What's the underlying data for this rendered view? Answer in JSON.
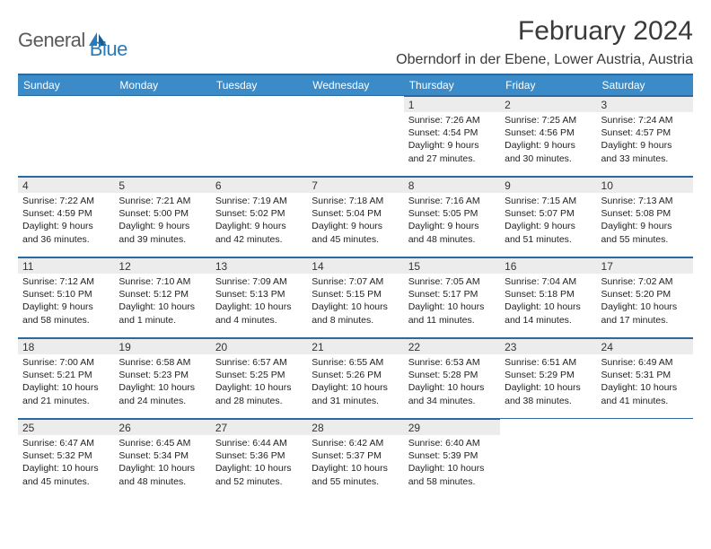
{
  "logo": {
    "general": "General",
    "blue": "Blue"
  },
  "title": "February 2024",
  "location": "Oberndorf in der Ebene, Lower Austria, Austria",
  "header_bg": "#3b8bc8",
  "header_border": "#2a6aa0",
  "daynum_bg": "#ececec",
  "days": [
    "Sunday",
    "Monday",
    "Tuesday",
    "Wednesday",
    "Thursday",
    "Friday",
    "Saturday"
  ],
  "weeks": [
    [
      null,
      null,
      null,
      null,
      {
        "n": "1",
        "sr": "7:26 AM",
        "ss": "4:54 PM",
        "dl": "9 hours and 27 minutes."
      },
      {
        "n": "2",
        "sr": "7:25 AM",
        "ss": "4:56 PM",
        "dl": "9 hours and 30 minutes."
      },
      {
        "n": "3",
        "sr": "7:24 AM",
        "ss": "4:57 PM",
        "dl": "9 hours and 33 minutes."
      }
    ],
    [
      {
        "n": "4",
        "sr": "7:22 AM",
        "ss": "4:59 PM",
        "dl": "9 hours and 36 minutes."
      },
      {
        "n": "5",
        "sr": "7:21 AM",
        "ss": "5:00 PM",
        "dl": "9 hours and 39 minutes."
      },
      {
        "n": "6",
        "sr": "7:19 AM",
        "ss": "5:02 PM",
        "dl": "9 hours and 42 minutes."
      },
      {
        "n": "7",
        "sr": "7:18 AM",
        "ss": "5:04 PM",
        "dl": "9 hours and 45 minutes."
      },
      {
        "n": "8",
        "sr": "7:16 AM",
        "ss": "5:05 PM",
        "dl": "9 hours and 48 minutes."
      },
      {
        "n": "9",
        "sr": "7:15 AM",
        "ss": "5:07 PM",
        "dl": "9 hours and 51 minutes."
      },
      {
        "n": "10",
        "sr": "7:13 AM",
        "ss": "5:08 PM",
        "dl": "9 hours and 55 minutes."
      }
    ],
    [
      {
        "n": "11",
        "sr": "7:12 AM",
        "ss": "5:10 PM",
        "dl": "9 hours and 58 minutes."
      },
      {
        "n": "12",
        "sr": "7:10 AM",
        "ss": "5:12 PM",
        "dl": "10 hours and 1 minute."
      },
      {
        "n": "13",
        "sr": "7:09 AM",
        "ss": "5:13 PM",
        "dl": "10 hours and 4 minutes."
      },
      {
        "n": "14",
        "sr": "7:07 AM",
        "ss": "5:15 PM",
        "dl": "10 hours and 8 minutes."
      },
      {
        "n": "15",
        "sr": "7:05 AM",
        "ss": "5:17 PM",
        "dl": "10 hours and 11 minutes."
      },
      {
        "n": "16",
        "sr": "7:04 AM",
        "ss": "5:18 PM",
        "dl": "10 hours and 14 minutes."
      },
      {
        "n": "17",
        "sr": "7:02 AM",
        "ss": "5:20 PM",
        "dl": "10 hours and 17 minutes."
      }
    ],
    [
      {
        "n": "18",
        "sr": "7:00 AM",
        "ss": "5:21 PM",
        "dl": "10 hours and 21 minutes."
      },
      {
        "n": "19",
        "sr": "6:58 AM",
        "ss": "5:23 PM",
        "dl": "10 hours and 24 minutes."
      },
      {
        "n": "20",
        "sr": "6:57 AM",
        "ss": "5:25 PM",
        "dl": "10 hours and 28 minutes."
      },
      {
        "n": "21",
        "sr": "6:55 AM",
        "ss": "5:26 PM",
        "dl": "10 hours and 31 minutes."
      },
      {
        "n": "22",
        "sr": "6:53 AM",
        "ss": "5:28 PM",
        "dl": "10 hours and 34 minutes."
      },
      {
        "n": "23",
        "sr": "6:51 AM",
        "ss": "5:29 PM",
        "dl": "10 hours and 38 minutes."
      },
      {
        "n": "24",
        "sr": "6:49 AM",
        "ss": "5:31 PM",
        "dl": "10 hours and 41 minutes."
      }
    ],
    [
      {
        "n": "25",
        "sr": "6:47 AM",
        "ss": "5:32 PM",
        "dl": "10 hours and 45 minutes."
      },
      {
        "n": "26",
        "sr": "6:45 AM",
        "ss": "5:34 PM",
        "dl": "10 hours and 48 minutes."
      },
      {
        "n": "27",
        "sr": "6:44 AM",
        "ss": "5:36 PM",
        "dl": "10 hours and 52 minutes."
      },
      {
        "n": "28",
        "sr": "6:42 AM",
        "ss": "5:37 PM",
        "dl": "10 hours and 55 minutes."
      },
      {
        "n": "29",
        "sr": "6:40 AM",
        "ss": "5:39 PM",
        "dl": "10 hours and 58 minutes."
      },
      null,
      null
    ]
  ],
  "labels": {
    "sunrise": "Sunrise: ",
    "sunset": "Sunset: ",
    "daylight": "Daylight: "
  }
}
